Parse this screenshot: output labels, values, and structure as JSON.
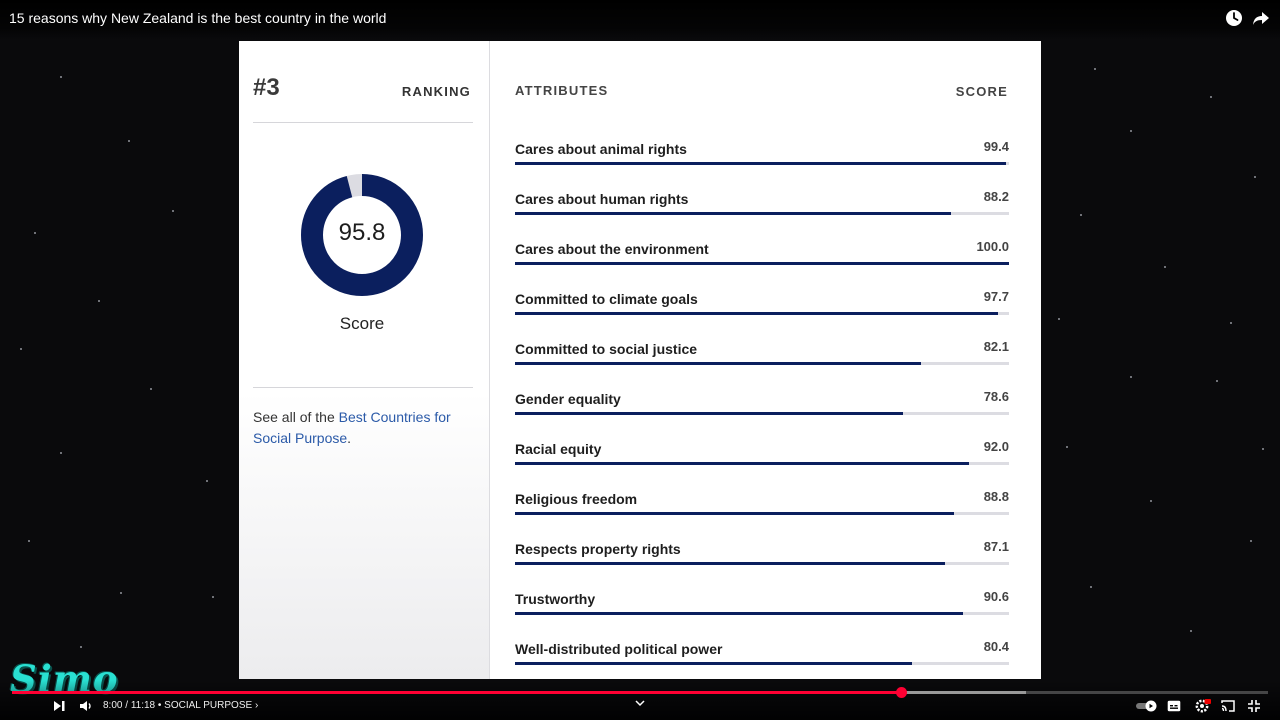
{
  "video": {
    "title": "15 reasons why New Zealand is the best country in the world",
    "time_current": "8:00",
    "time_total": "11:18",
    "chapter": "SOCIAL PURPOSE",
    "progress_fraction": 0.708,
    "buffered_fraction": 0.807
  },
  "ranking": {
    "number": "#3",
    "label": "RANKING",
    "score": "95.8",
    "score_value": 95.8,
    "score_label": "Score"
  },
  "see_all": {
    "prefix": "See all of the ",
    "link": "Best Countries for Social Purpose",
    "suffix": "."
  },
  "attributes": {
    "header": "ATTRIBUTES",
    "score_header": "SCORE",
    "items": [
      {
        "name": "Cares about animal rights",
        "score": "99.4",
        "value": 99.4
      },
      {
        "name": "Cares about human rights",
        "score": "88.2",
        "value": 88.2
      },
      {
        "name": "Cares about the environment",
        "score": "100.0",
        "value": 100.0
      },
      {
        "name": "Committed to climate goals",
        "score": "97.7",
        "value": 97.7
      },
      {
        "name": "Committed to social justice",
        "score": "82.1",
        "value": 82.1
      },
      {
        "name": "Gender equality",
        "score": "78.6",
        "value": 78.6
      },
      {
        "name": "Racial equity",
        "score": "92.0",
        "value": 92.0
      },
      {
        "name": "Religious freedom",
        "score": "88.8",
        "value": 88.8
      },
      {
        "name": "Respects property rights",
        "score": "87.1",
        "value": 87.1
      },
      {
        "name": "Trustworthy",
        "score": "90.6",
        "value": 90.6
      },
      {
        "name": "Well-distributed political power",
        "score": "80.4",
        "value": 80.4
      }
    ]
  },
  "watermark": "Simo",
  "colors": {
    "bar": "#0b1f5e",
    "donut": "#0b1f5e",
    "link": "#2b5aa8",
    "progress": "#ff0033"
  },
  "icons": {
    "watch_later": "clock-icon",
    "share": "share-arrow-icon",
    "next": "skip-next-icon",
    "volume": "volume-icon",
    "autoplay": "autoplay-toggle-icon",
    "captions": "captions-icon",
    "settings": "gear-icon",
    "cast": "cast-icon",
    "exit_fullscreen": "exit-fullscreen-icon"
  }
}
